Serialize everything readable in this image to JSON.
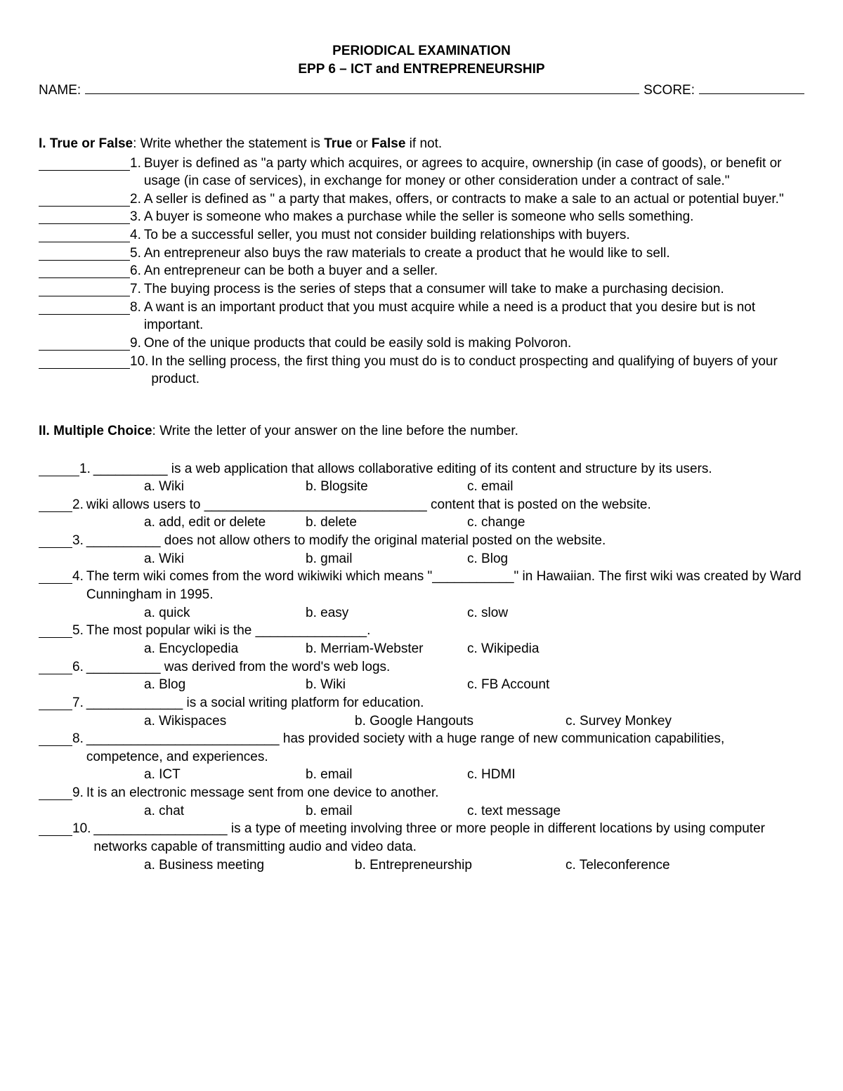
{
  "header": {
    "title1": "PERIODICAL EXAMINATION",
    "title2": "EPP 6 – ICT and ENTREPRENEURSHIP",
    "name_label": "NAME:",
    "score_label": "SCORE:"
  },
  "section1": {
    "label": "I. True or False",
    "instruction_pre": ": Write whether the statement is ",
    "true_word": "True",
    "mid": " or ",
    "false_word": "False",
    "instruction_post": " if not.",
    "items": [
      {
        "num": "1.",
        "text": "Buyer is defined as \"a party which acquires, or agrees to acquire, ownership (in case of goods), or benefit or usage (in case of services), in exchange for money or other consideration under a contract of sale.\""
      },
      {
        "num": "2.",
        "text": "A seller is defined as \" a party that makes, offers, or contracts to make a sale to an actual or potential buyer.\""
      },
      {
        "num": "3.",
        "text": "A buyer is someone who makes a purchase while the seller is someone who sells something."
      },
      {
        "num": "4.",
        "text": "To be a successful seller, you must not consider building relationships with buyers."
      },
      {
        "num": "5.",
        "text": "An entrepreneur also buys the raw materials to create a product that he would like to sell."
      },
      {
        "num": "6.",
        "text": "An entrepreneur can be both a buyer and a seller."
      },
      {
        "num": "7.",
        "text": "The buying process is the series of steps that a consumer will take to make a purchasing decision."
      },
      {
        "num": "8.",
        "text": "A want is an important product that you must acquire while a need is a product that you desire but is not important."
      },
      {
        "num": "9.",
        "text": "One of the unique products that could be easily sold is making Polvoron."
      },
      {
        "num": "10.",
        "text": "In the selling process, the first thing you must do is to conduct prospecting and qualifying of buyers of your product."
      }
    ]
  },
  "section2": {
    "label": "II. Multiple Choice",
    "instruction": ": Write the letter of your answer on the line before the number.",
    "items": [
      {
        "num": "1.",
        "q": "__________ is a web application that allows collaborative editing of its content and structure by its users.",
        "opts": {
          "a": "a. Wiki",
          "b": "b. Blogsite",
          "c": "c. email"
        },
        "blank": "short"
      },
      {
        "num": "2.",
        "q": "wiki allows users to ______________________________ content that is posted on the website.",
        "opts": {
          "a": "a. add, edit or delete",
          "b": "b. delete",
          "c": "c. change"
        },
        "blank": "tiny"
      },
      {
        "num": "3.",
        "q": "__________ does not allow others to modify the original material posted on the website.",
        "opts": {
          "a": "a. Wiki",
          "b": "b. gmail",
          "c": "c. Blog"
        },
        "blank": "tiny"
      },
      {
        "num": "4.",
        "q": "The term wiki comes from the word wikiwiki which means \"___________\" in Hawaiian. The first wiki was created by Ward Cunningham in 1995.",
        "opts": {
          "a": "a. quick",
          "b": "b. easy",
          "c": "c. slow"
        },
        "blank": "tiny"
      },
      {
        "num": "5.",
        "q": "The most popular wiki is the _______________.",
        "opts": {
          "a": "a. Encyclopedia",
          "b": "b. Merriam-Webster",
          "c": "c. Wikipedia"
        },
        "blank": "tiny"
      },
      {
        "num": "6.",
        "q": "__________ was derived from the word's web logs.",
        "opts": {
          "a": "a. Blog",
          "b": "b. Wiki",
          "c": "c. FB Account"
        },
        "blank": "tiny"
      },
      {
        "num": "7.",
        "q": "_____________ is a social writing platform for education.",
        "opts": {
          "a": "a. Wikispaces",
          "b": "b. Google Hangouts",
          "c": "c. Survey Monkey"
        },
        "blank": "tiny",
        "wide": true
      },
      {
        "num": "8.",
        "q": "__________________________ has provided society with a huge range of new communication capabilities, competence, and experiences.",
        "opts": {
          "a": "a. ICT",
          "b": "b. email",
          "c": "c. HDMI"
        },
        "blank": "tiny"
      },
      {
        "num": "9.",
        "q": "It is an electronic message sent from one device to another.",
        "opts": {
          "a": "a. chat",
          "b": "b. email",
          "c": "c. text message"
        },
        "blank": "tiny"
      },
      {
        "num": "10.",
        "q": "__________________ is a type of meeting involving three or more people in different locations by using computer networks capable of transmitting audio and video data.",
        "opts": {
          "a": "a. Business meeting",
          "b": "b. Entrepreneurship",
          "c": "c. Teleconference"
        },
        "blank": "tiny",
        "wide": true
      }
    ]
  }
}
